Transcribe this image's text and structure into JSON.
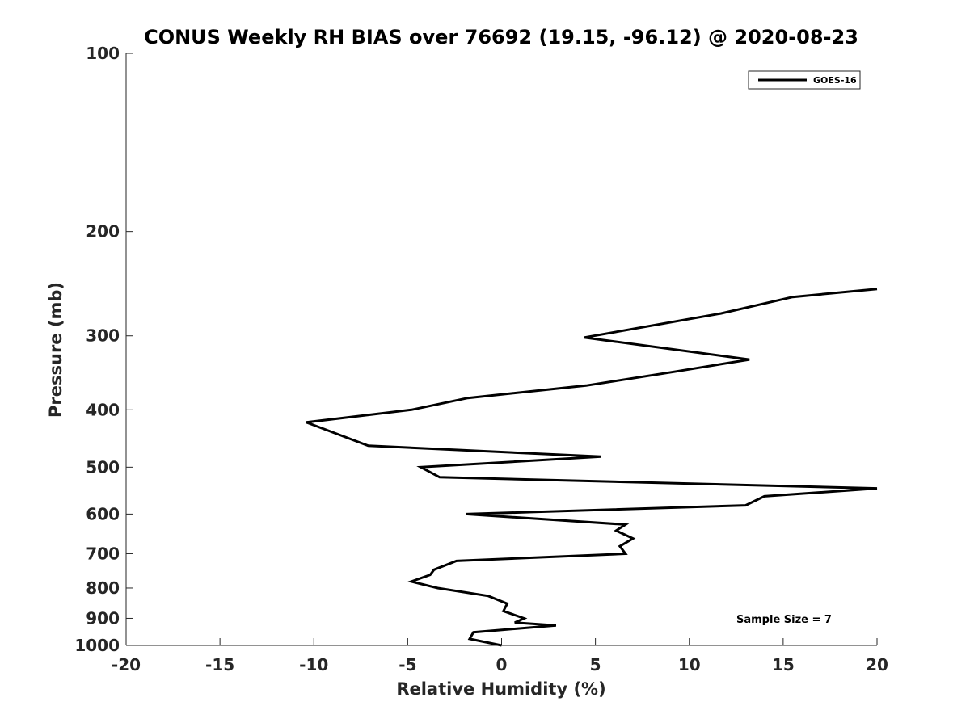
{
  "chart_data": {
    "type": "line",
    "title": "CONUS Weekly RH BIAS over 76692 (19.15, -96.12) @ 2020-08-23",
    "xlabel": "Relative Humidity (%)",
    "ylabel": "Pressure (mb)",
    "xlim": [
      -20,
      20
    ],
    "ylim": [
      100,
      1000
    ],
    "y_scale": "log",
    "y_reversed": true,
    "xticks": [
      "-20",
      "-15",
      "-10",
      "-5",
      "0",
      "5",
      "10",
      "15",
      "20"
    ],
    "yticks": [
      "100",
      "200",
      "300",
      "400",
      "500",
      "600",
      "700",
      "800",
      "900",
      "1000"
    ],
    "grid": false,
    "legend_position": "top-right",
    "annotation": "Sample Size = 7",
    "series": [
      {
        "name": "GOES-16",
        "color": "#000000",
        "points": [
          [
            20.0,
            250
          ],
          [
            15.5,
            258
          ],
          [
            11.7,
            275
          ],
          [
            4.4,
            302
          ],
          [
            13.2,
            329
          ],
          [
            9.2,
            345
          ],
          [
            4.5,
            364
          ],
          [
            -1.8,
            382
          ],
          [
            -4.8,
            400
          ],
          [
            -10.4,
            420
          ],
          [
            -7.1,
            460
          ],
          [
            5.3,
            480
          ],
          [
            -4.3,
            500
          ],
          [
            -3.3,
            520
          ],
          [
            20.0,
            543
          ],
          [
            14.0,
            560
          ],
          [
            13.0,
            580
          ],
          [
            -1.9,
            600
          ],
          [
            6.6,
            625
          ],
          [
            6.1,
            640
          ],
          [
            7.0,
            660
          ],
          [
            6.3,
            680
          ],
          [
            6.6,
            700
          ],
          [
            -2.4,
            720
          ],
          [
            -3.6,
            745
          ],
          [
            -3.8,
            760
          ],
          [
            -4.8,
            780
          ],
          [
            -3.4,
            800
          ],
          [
            -0.7,
            825
          ],
          [
            0.3,
            850
          ],
          [
            0.1,
            875
          ],
          [
            1.2,
            900
          ],
          [
            0.7,
            915
          ],
          [
            2.9,
            925
          ],
          [
            -1.5,
            950
          ],
          [
            -1.7,
            975
          ],
          [
            0.0,
            1000
          ]
        ]
      }
    ]
  }
}
